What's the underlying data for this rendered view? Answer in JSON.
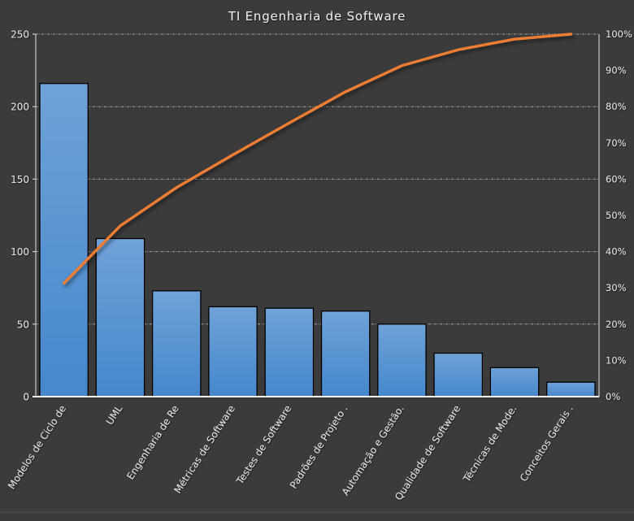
{
  "page": {
    "background": "#3B3B3B"
  },
  "chart_data": {
    "type": "bar",
    "subtype": "pareto",
    "title": "TI Engenharia de Software",
    "categories": [
      "Modelos de Ciclo de",
      "UML",
      "Engenharia de Re",
      "Métricas de Software",
      "Testes de Software",
      "Padrões de Projeto .",
      "Automação e Gestão.",
      "Qualidade de Software",
      "Técnicas de Mode.",
      "Conceitos Gerais ."
    ],
    "series": [
      {
        "name": "bar-values",
        "type": "bar",
        "axis": "left",
        "values": [
          216,
          109,
          73,
          62,
          61,
          59,
          50,
          30,
          20,
          10
        ]
      },
      {
        "name": "cumulative-percentage-line",
        "type": "line",
        "axis": "right",
        "values": [
          31.3,
          47.1,
          57.7,
          66.7,
          75.5,
          84.1,
          91.3,
          95.7,
          98.6,
          100
        ]
      }
    ],
    "left_axis": {
      "min": 0,
      "max": 250,
      "step": 50,
      "tick_values": [
        0,
        50,
        100,
        150,
        200,
        250
      ]
    },
    "right_axis": {
      "min": 0,
      "max": 100,
      "step": 10,
      "tick_labels": [
        "0%",
        "10%",
        "20%",
        "30%",
        "40%",
        "50%",
        "60%",
        "70%",
        "80%",
        "90%",
        "100%"
      ]
    },
    "gridlines": {
      "orientation": "horizontal",
      "style": "dash-dot",
      "at_left_values": [
        50,
        100,
        150,
        200,
        250
      ]
    },
    "legend": null,
    "colors": {
      "background": "#3B3B3B",
      "bar_top": "#6FA2D8",
      "bar_bottom": "#4588CC",
      "bar_border": "#000000",
      "line": "#ED7D31",
      "grid": "#C0C0C0",
      "axis": "#C9C9C9",
      "baseline": "#F2F2F2",
      "tick_text": "#E6E6E6",
      "title_text": "#EDEDED"
    }
  }
}
